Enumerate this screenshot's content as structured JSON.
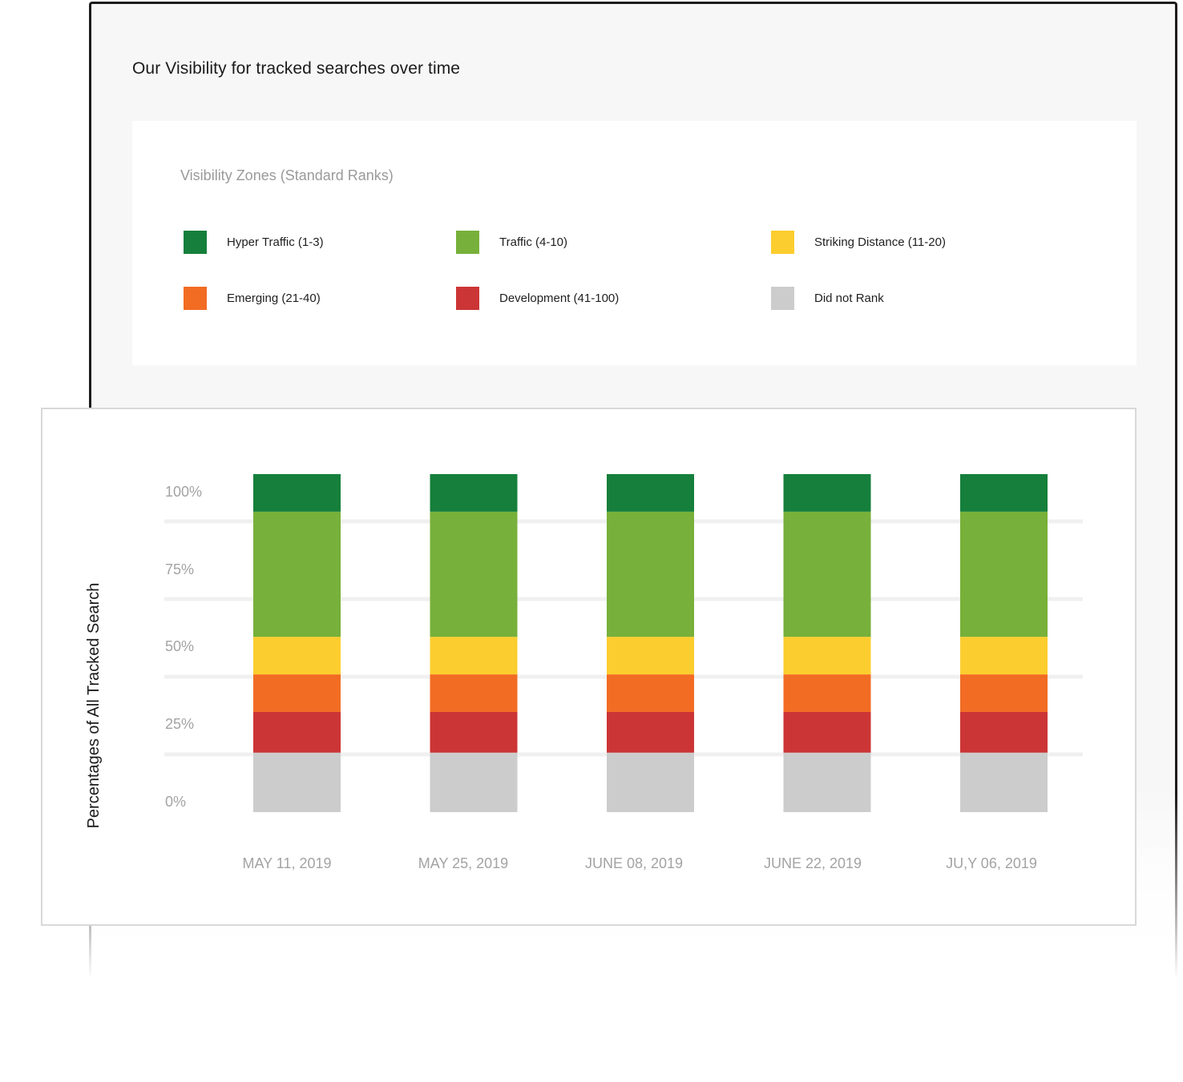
{
  "panel": {
    "title": "Our Visibility for tracked searches over time"
  },
  "legend": {
    "heading": "Visibility Zones (Standard Ranks)",
    "items": [
      {
        "label": "Hyper Traffic (1-3)",
        "color": "#157f3b"
      },
      {
        "label": "Traffic (4-10)",
        "color": "#77b03a"
      },
      {
        "label": "Striking Distance (11-20)",
        "color": "#fccd2e"
      },
      {
        "label": "Emerging (21-40)",
        "color": "#f26c23"
      },
      {
        "label": "Development (41-100)",
        "color": "#cc3535"
      },
      {
        "label": "Did not Rank",
        "color": "#cccccc"
      }
    ]
  },
  "chart_data": {
    "type": "bar",
    "stacked": true,
    "ylabel": "Percentages of All Tracked Search",
    "ytick_labels": [
      "0%",
      "25%",
      "50%",
      "75%",
      "100%"
    ],
    "categories": [
      "MAY 11, 2019",
      "MAY 25, 2019",
      "JUNE 08, 2019",
      "JUNE 22, 2019",
      "JU,Y 06, 2019"
    ],
    "series": [
      {
        "name": "Did not Rank",
        "color": "#cccccc",
        "values": [
          19,
          19,
          19,
          19,
          19
        ]
      },
      {
        "name": "Development (41-100)",
        "color": "#cc3535",
        "values": [
          13,
          13,
          13,
          13,
          13
        ]
      },
      {
        "name": "Emerging (21-40)",
        "color": "#f26c23",
        "values": [
          12,
          12,
          12,
          12,
          12
        ]
      },
      {
        "name": "Striking Distance (11-20)",
        "color": "#fccd2e",
        "values": [
          12,
          12,
          12,
          12,
          12
        ]
      },
      {
        "name": "Traffic (4-10)",
        "color": "#77b03a",
        "values": [
          40,
          40,
          40,
          40,
          40
        ]
      },
      {
        "name": "Hyper Traffic (1-3)",
        "color": "#157f3b",
        "values": [
          12,
          12,
          12,
          12,
          12
        ]
      }
    ],
    "grid": true
  }
}
